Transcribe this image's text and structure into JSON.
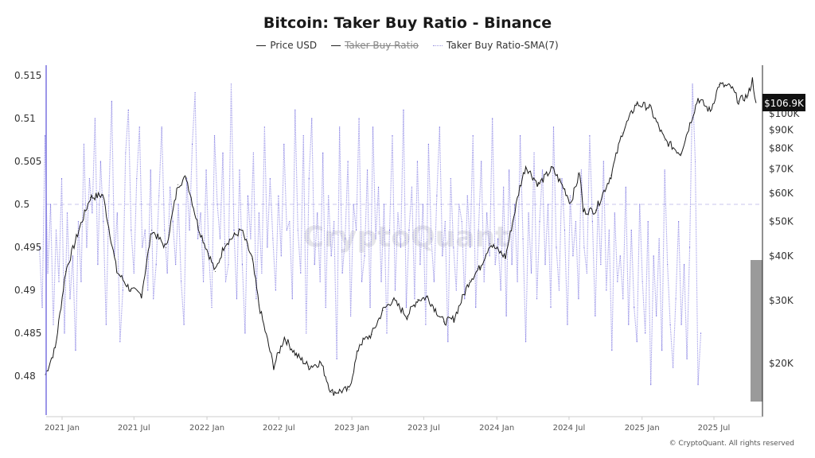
{
  "header": {
    "title": "Bitcoin: Taker Buy Ratio - Binance"
  },
  "legend": [
    {
      "label": "Price USD",
      "active": true
    },
    {
      "label": "Taker Buy Ratio",
      "active": false
    },
    {
      "label": "Taker Buy Ratio-SMA(7)",
      "active": true
    }
  ],
  "watermark": "CryptoQuant",
  "footer": "© CryptoQuant. All rights reserved",
  "current_price_label": "$106.9K",
  "colors": {
    "price": "#1a1a1a",
    "sma": "#7b74e0",
    "price_tag_bg": "#111111"
  },
  "chart_data": {
    "type": "line",
    "title": "Bitcoin: Taker Buy Ratio - Binance",
    "x_ticks": [
      "2021 Jan",
      "2021 Jul",
      "2022 Jan",
      "2022 Jul",
      "2023 Jan",
      "2023 Jul",
      "2024 Jan",
      "2024 Jul",
      "2025 Jan",
      "2025 Jul"
    ],
    "x_tick_dates": [
      "2021-01-01",
      "2021-07-01",
      "2022-01-01",
      "2022-07-01",
      "2023-01-01",
      "2023-07-01",
      "2024-01-01",
      "2024-07-01",
      "2025-01-01",
      "2025-07-01"
    ],
    "left_axis": {
      "ticks": [
        "0.515",
        "0.51",
        "0.505",
        "0.5",
        "0.495",
        "0.49",
        "0.485",
        "0.48"
      ],
      "tick_values": [
        0.515,
        0.51,
        0.505,
        0.5,
        0.495,
        0.49,
        0.485,
        0.48
      ],
      "range": [
        0.4775,
        0.5165
      ],
      "reference_line": 0.5
    },
    "right_axis": {
      "scale": "log",
      "ticks": [
        "$100K",
        "$90K",
        "$80K",
        "$70K",
        "$60K",
        "$50K",
        "$40K",
        "$30K",
        "$20K"
      ],
      "tick_values": [
        100000,
        90000,
        80000,
        70000,
        60000,
        50000,
        40000,
        30000,
        20000
      ]
    },
    "series": [
      {
        "name": "Price USD",
        "axis": "right",
        "x": [
          "2020-11-20",
          "2020-12-15",
          "2021-01-10",
          "2021-02-15",
          "2021-03-13",
          "2021-04-14",
          "2021-05-19",
          "2021-06-22",
          "2021-07-20",
          "2021-08-15",
          "2021-09-20",
          "2021-10-20",
          "2021-11-10",
          "2021-12-10",
          "2022-01-22",
          "2022-02-15",
          "2022-03-29",
          "2022-04-25",
          "2022-05-12",
          "2022-06-18",
          "2022-07-15",
          "2022-08-14",
          "2022-09-15",
          "2022-10-15",
          "2022-11-10",
          "2022-12-25",
          "2023-01-20",
          "2023-02-20",
          "2023-03-20",
          "2023-04-14",
          "2023-05-20",
          "2023-06-15",
          "2023-07-10",
          "2023-08-20",
          "2023-09-15",
          "2023-10-25",
          "2023-11-20",
          "2023-12-15",
          "2024-01-23",
          "2024-02-28",
          "2024-03-14",
          "2024-04-15",
          "2024-05-20",
          "2024-06-20",
          "2024-07-05",
          "2024-07-28",
          "2024-08-06",
          "2024-09-06",
          "2024-10-15",
          "2024-11-12",
          "2024-12-17",
          "2025-01-20",
          "2025-02-27",
          "2025-04-08",
          "2025-05-22",
          "2025-06-22",
          "2025-07-14",
          "2025-08-14",
          "2025-09-01",
          "2025-09-25",
          "2025-10-06",
          "2025-10-15"
        ],
        "values": [
          18500,
          22000,
          36000,
          48000,
          58000,
          59000,
          36000,
          32000,
          31000,
          47000,
          42000,
          63000,
          66000,
          48000,
          36000,
          43000,
          47000,
          39000,
          29000,
          19500,
          23500,
          21000,
          19500,
          20000,
          16500,
          16800,
          22500,
          24000,
          28000,
          30000,
          27000,
          30000,
          30500,
          26000,
          26500,
          34000,
          37000,
          43000,
          39500,
          62000,
          71000,
          63000,
          70000,
          61000,
          56000,
          68000,
          53000,
          53500,
          67000,
          88000,
          106000,
          104000,
          84000,
          77000,
          110000,
          101000,
          120000,
          118000,
          108000,
          112000,
          124000,
          106900
        ]
      },
      {
        "name": "Taker Buy Ratio-SMA(7)",
        "axis": "left",
        "start": "2020-11-05",
        "step_days": 7,
        "values": [
          0.495,
          0.488,
          0.508,
          0.492,
          0.5,
          0.486,
          0.497,
          0.491,
          0.503,
          0.485,
          0.499,
          0.489,
          0.494,
          0.483,
          0.498,
          0.491,
          0.507,
          0.495,
          0.503,
          0.499,
          0.51,
          0.493,
          0.505,
          0.498,
          0.486,
          0.501,
          0.512,
          0.494,
          0.499,
          0.484,
          0.49,
          0.506,
          0.511,
          0.497,
          0.492,
          0.503,
          0.509,
          0.495,
          0.497,
          0.49,
          0.504,
          0.489,
          0.493,
          0.501,
          0.509,
          0.497,
          0.492,
          0.502,
          0.498,
          0.493,
          0.5,
          0.491,
          0.486,
          0.503,
          0.497,
          0.507,
          0.513,
          0.496,
          0.499,
          0.491,
          0.504,
          0.494,
          0.488,
          0.508,
          0.5,
          0.496,
          0.506,
          0.491,
          0.493,
          0.514,
          0.497,
          0.489,
          0.504,
          0.493,
          0.485,
          0.501,
          0.496,
          0.506,
          0.489,
          0.499,
          0.492,
          0.509,
          0.495,
          0.503,
          0.496,
          0.49,
          0.501,
          0.494,
          0.507,
          0.497,
          0.498,
          0.489,
          0.511,
          0.497,
          0.492,
          0.508,
          0.485,
          0.503,
          0.51,
          0.493,
          0.499,
          0.491,
          0.506,
          0.488,
          0.501,
          0.494,
          0.498,
          0.482,
          0.509,
          0.492,
          0.496,
          0.505,
          0.487,
          0.5,
          0.497,
          0.51,
          0.491,
          0.494,
          0.504,
          0.488,
          0.509,
          0.496,
          0.502,
          0.491,
          0.5,
          0.485,
          0.497,
          0.508,
          0.49,
          0.499,
          0.495,
          0.511,
          0.488,
          0.497,
          0.502,
          0.489,
          0.505,
          0.493,
          0.5,
          0.486,
          0.507,
          0.496,
          0.491,
          0.501,
          0.509,
          0.494,
          0.498,
          0.484,
          0.503,
          0.495,
          0.49,
          0.5,
          0.498,
          0.489,
          0.501,
          0.495,
          0.508,
          0.488,
          0.497,
          0.505,
          0.491,
          0.499,
          0.494,
          0.51,
          0.493,
          0.496,
          0.49,
          0.502,
          0.487,
          0.504,
          0.493,
          0.5,
          0.491,
          0.508,
          0.496,
          0.484,
          0.499,
          0.492,
          0.506,
          0.489,
          0.498,
          0.504,
          0.493,
          0.5,
          0.488,
          0.509,
          0.495,
          0.49,
          0.503,
          0.497,
          0.486,
          0.501,
          0.494,
          0.498,
          0.489,
          0.504,
          0.495,
          0.492,
          0.508,
          0.498,
          0.487,
          0.5,
          0.493,
          0.505,
          0.49,
          0.497,
          0.483,
          0.499,
          0.491,
          0.494,
          0.489,
          0.502,
          0.486,
          0.497,
          0.488,
          0.484,
          0.5,
          0.491,
          0.485,
          0.498,
          0.479,
          0.494,
          0.487,
          0.496,
          0.483,
          0.504,
          0.493,
          0.486,
          0.481,
          0.489,
          0.498,
          0.486,
          0.493,
          0.482,
          0.495,
          0.514,
          0.505,
          0.479,
          0.485
        ]
      }
    ]
  }
}
